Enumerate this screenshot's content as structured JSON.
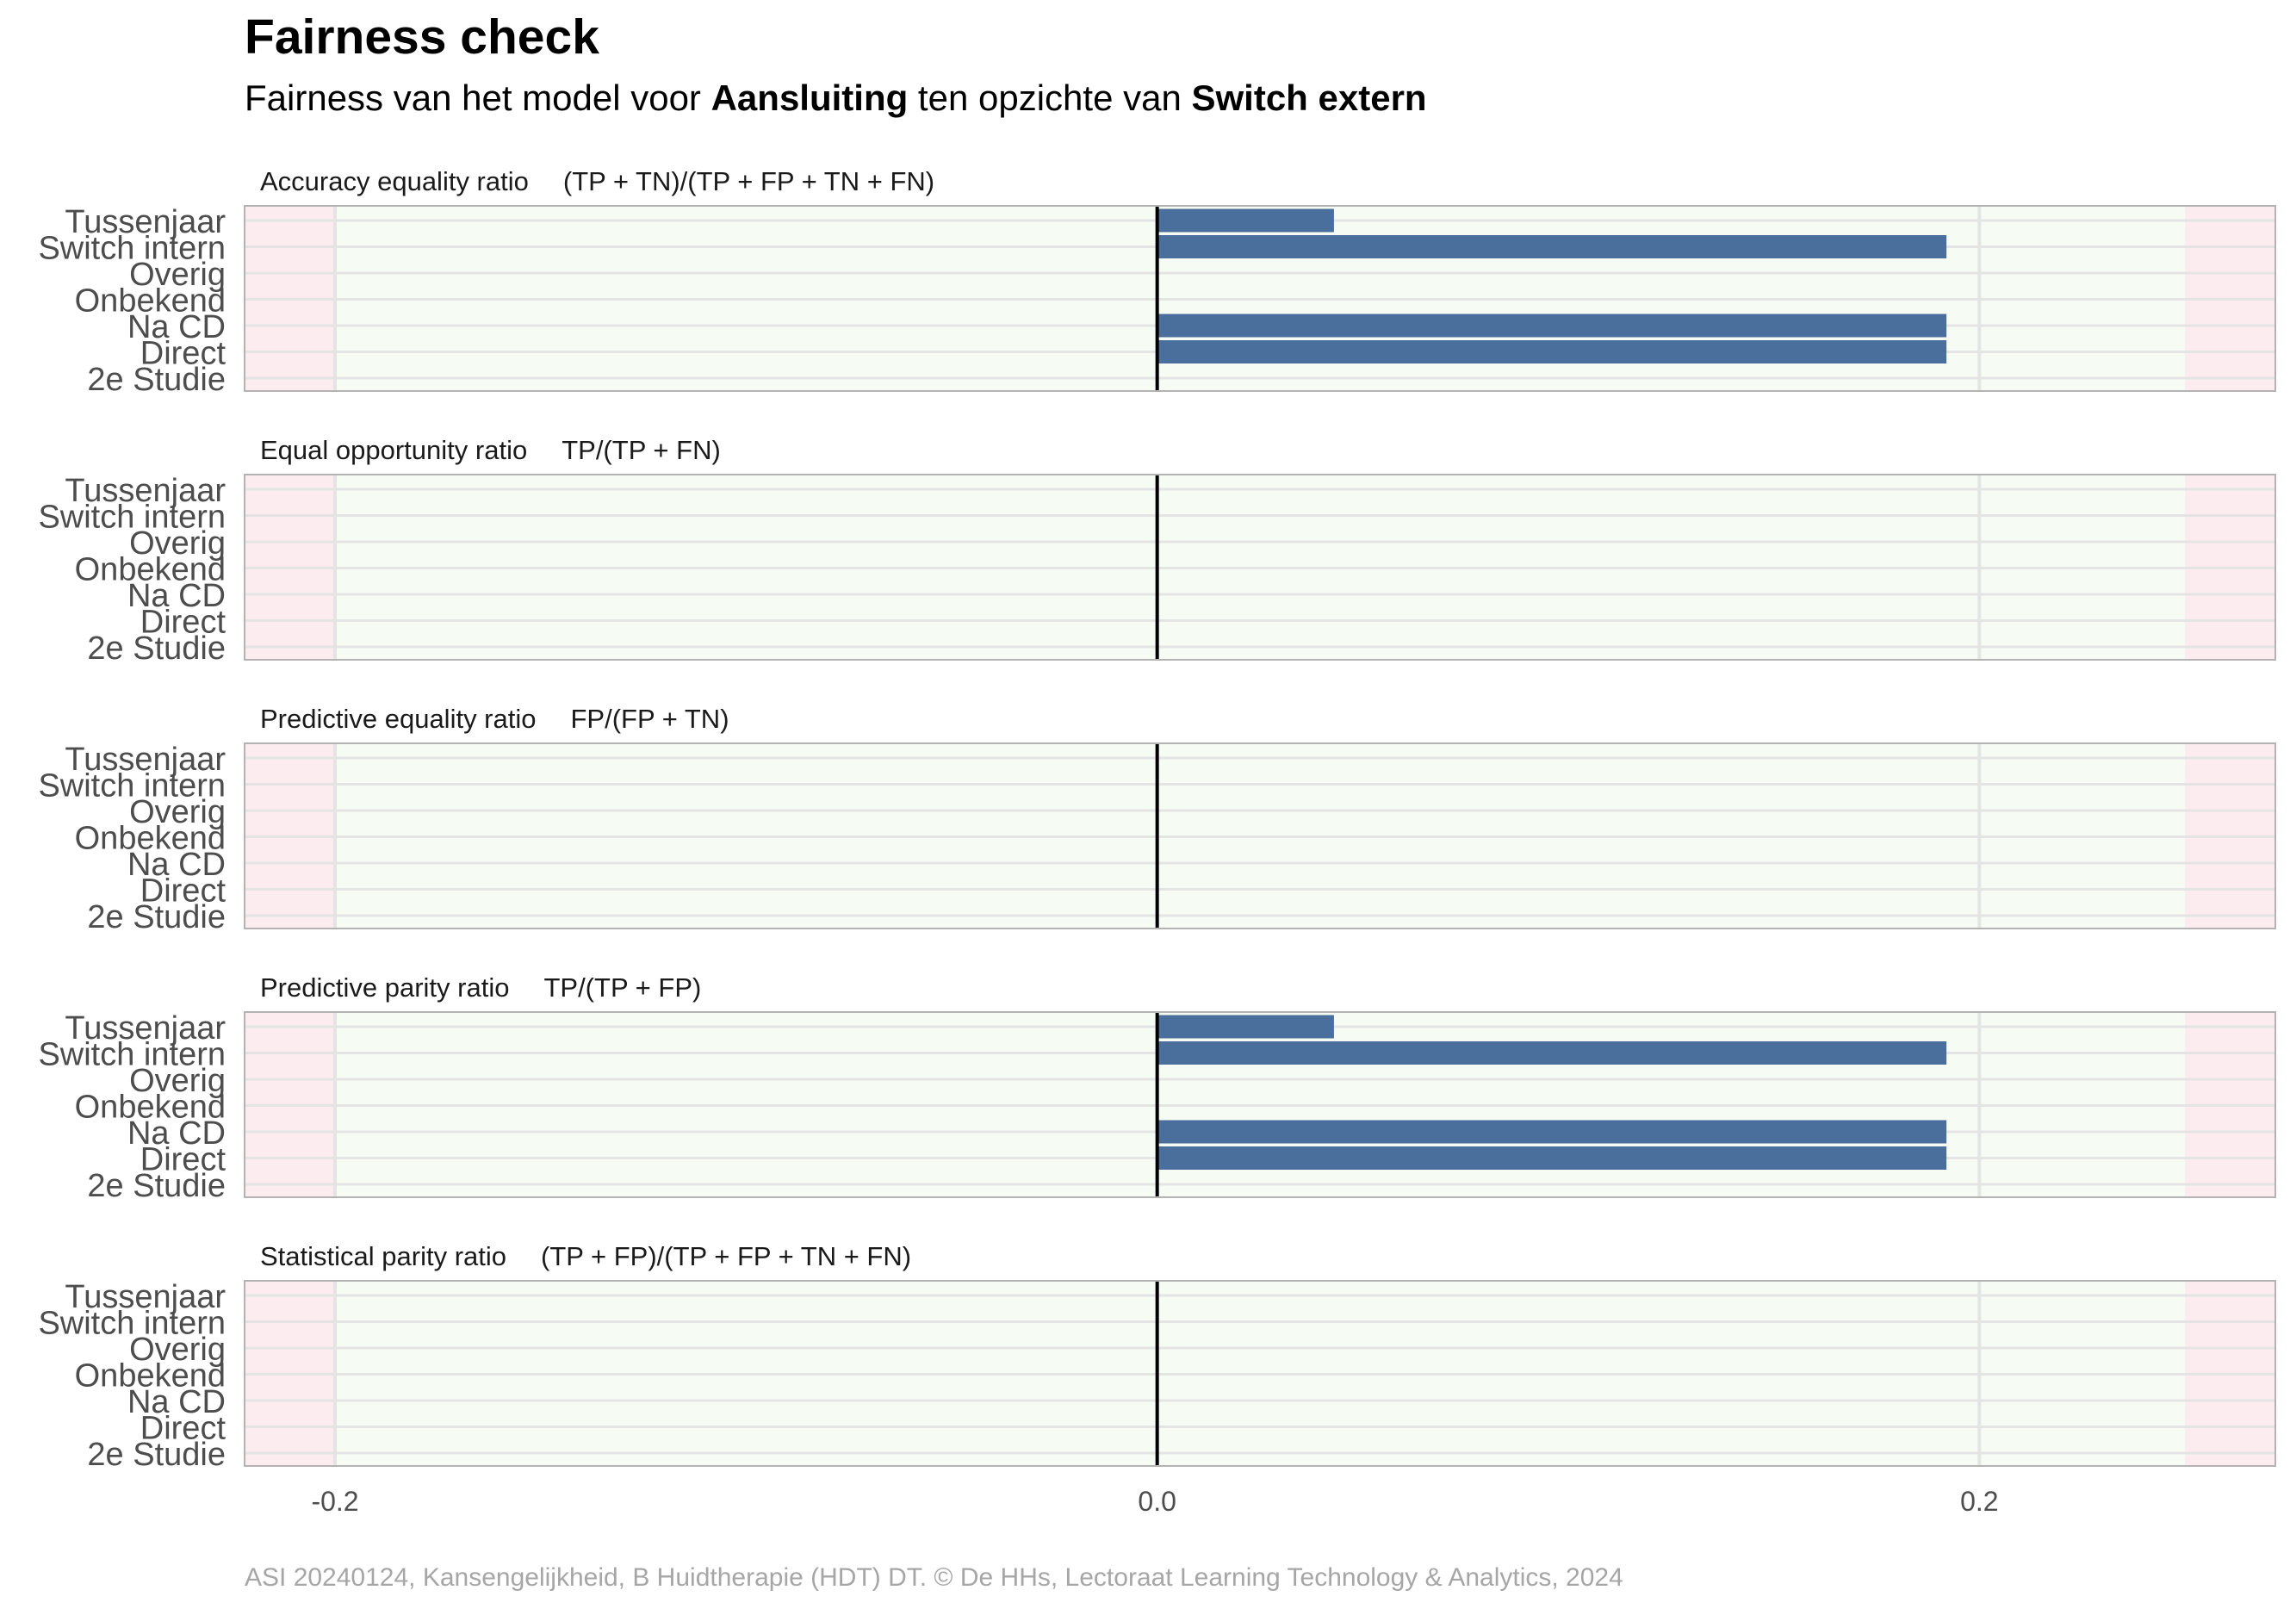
{
  "header": {
    "title": "Fairness check",
    "subtitle_pre": "Fairness van het model voor ",
    "subtitle_model": "Aansluiting",
    "subtitle_mid": " ten opzichte van ",
    "subtitle_reference": "Switch extern"
  },
  "caption": "ASI 20240124, Kansengelijkheid, B Huidtherapie (HDT) DT. © De HHs, Lectoraat Learning Technology & Analytics, 2024",
  "colors": {
    "bar": "#4a6f9c",
    "fair_zone": "#f6fbf4",
    "unfair_zone": "#fcecef",
    "zero_line": "#000000",
    "grid": "#e4e4e4",
    "panel_border": "#b3b3b3"
  },
  "chart_data": {
    "type": "bar",
    "orientation": "horizontal",
    "categories": [
      "Tussenjaar",
      "Switch intern",
      "Overig",
      "Onbekend",
      "Na CD",
      "Direct",
      "2e Studie"
    ],
    "xlim": [
      -0.222,
      0.272
    ],
    "x_ticks": [
      -0.2,
      0.0,
      0.2
    ],
    "x_tick_labels": [
      "-0.2",
      "0.0",
      "0.2"
    ],
    "fair_range": [
      -0.2,
      0.25
    ],
    "grid": true,
    "panels": [
      {
        "metric": "Accuracy equality ratio",
        "formula": "(TP + TN)/(TP + FP + TN + FN)",
        "values": [
          0.043,
          0.192,
          0,
          0,
          0.192,
          0.192,
          0
        ]
      },
      {
        "metric": "Equal opportunity ratio",
        "formula": "TP/(TP + FN)",
        "values": [
          0,
          0,
          0,
          0,
          0,
          0,
          0
        ]
      },
      {
        "metric": "Predictive equality ratio",
        "formula": "FP/(FP + TN)",
        "values": [
          0,
          0,
          0,
          0,
          0,
          0,
          0
        ]
      },
      {
        "metric": "Predictive parity ratio",
        "formula": "TP/(TP + FP)",
        "values": [
          0.043,
          0.192,
          0,
          0,
          0.192,
          0.192,
          0
        ]
      },
      {
        "metric": "Statistical parity ratio",
        "formula": "(TP + FP)/(TP + FP + TN + FN)",
        "values": [
          0,
          0,
          0,
          0,
          0,
          0,
          0
        ]
      }
    ]
  }
}
